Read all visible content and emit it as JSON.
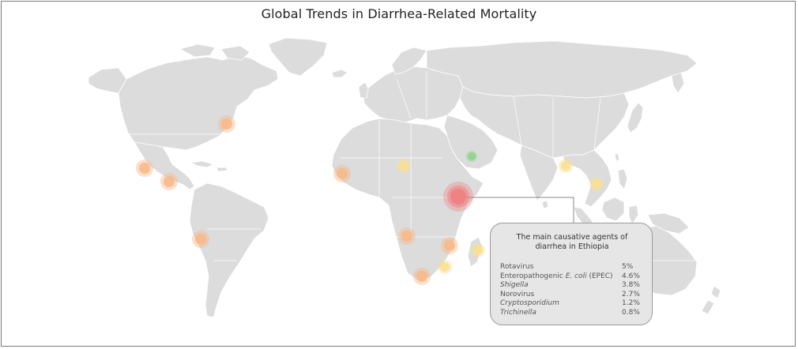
{
  "title": "Global Trends in Diarrhea-Related Mortality",
  "colors": {
    "land": "#dcdcdc",
    "border": "#ffffff",
    "orange_marker": "#f6b98a",
    "yellow_marker": "#f9e08f",
    "green_marker": "#8fd48c",
    "red_marker": "#f07f7f",
    "leader": "#8a8a8a"
  },
  "markers": [
    {
      "place": "United States East",
      "level": "orange"
    },
    {
      "place": "Mexico",
      "level": "orange"
    },
    {
      "place": "Central America",
      "level": "orange"
    },
    {
      "place": "Peru",
      "level": "orange"
    },
    {
      "place": "Senegal",
      "level": "orange"
    },
    {
      "place": "Niger",
      "level": "yellow"
    },
    {
      "place": "Saudi Arabia",
      "level": "green"
    },
    {
      "place": "Ethiopia",
      "level": "red"
    },
    {
      "place": "India",
      "level": "yellow"
    },
    {
      "place": "Myanmar",
      "level": "yellow"
    },
    {
      "place": "Angola",
      "level": "orange"
    },
    {
      "place": "Mozambique",
      "level": "orange"
    },
    {
      "place": "Zimbabwe",
      "level": "yellow"
    },
    {
      "place": "Madagascar",
      "level": "yellow"
    },
    {
      "place": "South Africa",
      "level": "orange"
    }
  ],
  "tooltip": {
    "title": "The main causative agents of diarrhea in Ethiopia",
    "rows": [
      {
        "agent": "Rotavirus",
        "value": "5%"
      },
      {
        "agent_pre": "Enteropathogenic ",
        "agent_italic": "E. coli",
        "agent_post": " (EPEC)",
        "value": "4.6%"
      },
      {
        "agent_italic": "Shigella",
        "value": "3.8%"
      },
      {
        "agent": "Norovirus",
        "value": "2.7%"
      },
      {
        "agent_italic": "Cryptosporidium",
        "value": "1.2%"
      },
      {
        "agent_italic": "Trichinella",
        "value": "0.8%"
      }
    ]
  }
}
